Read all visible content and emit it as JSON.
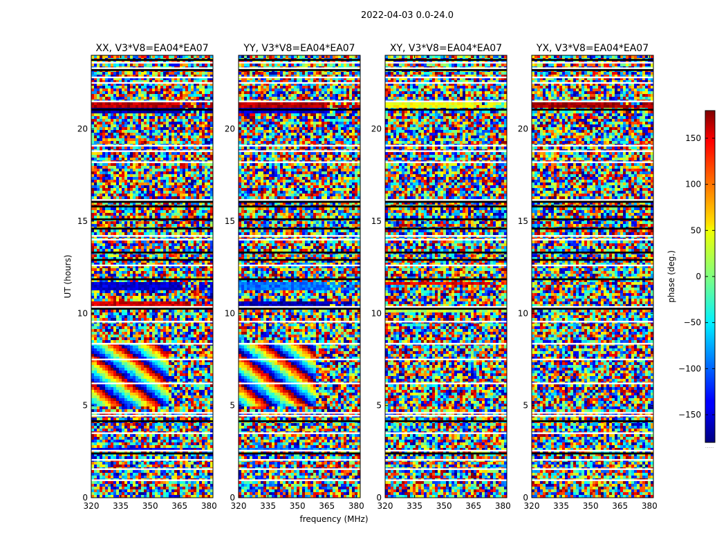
{
  "figure_title": "2022-04-03 0.0-24.0",
  "chart_data": {
    "type": "heatmap",
    "title": "2022-04-03 0.0-24.0",
    "xlabel": "frequency (MHz)",
    "ylabel": "UT (hours)",
    "xlim": [
      320,
      382
    ],
    "ylim": [
      0,
      24
    ],
    "x_ticks": [
      320,
      335,
      350,
      365,
      380
    ],
    "y_ticks": [
      0,
      5,
      10,
      15,
      20
    ],
    "colormap": "jet",
    "colorbar": {
      "label": "phase (deg.)",
      "range": [
        -180,
        180
      ],
      "ticks": [
        150,
        100,
        50,
        0,
        -50,
        -100,
        -150
      ],
      "tick_labels": [
        "150",
        "100",
        "50",
        "0",
        "−50",
        "−100",
        "−150"
      ],
      "footnote": "....."
    },
    "panels": [
      {
        "title": "XX, V3*V8=EA04*EA07",
        "polarization": "XX"
      },
      {
        "title": "YY, V3*V8=EA04*EA07",
        "polarization": "YY"
      },
      {
        "title": "XY, V3*V8=EA04*EA07",
        "polarization": "XY"
      },
      {
        "title": "YX, V3*V8=EA04*EA07",
        "polarization": "YX"
      }
    ],
    "flagged_hours": [
      0.95,
      1.55,
      2.05,
      2.55,
      3.5,
      4.45,
      4.6,
      6.2,
      7.5,
      8.35,
      9.55,
      10.35,
      12.6,
      14.0,
      14.2,
      16.15,
      18.2,
      18.8,
      19.1,
      21.5,
      22.5,
      22.8,
      23.3,
      23.6
    ],
    "black_bands_hours": [
      2.4,
      4.15,
      10.25,
      11.85,
      12.9,
      13.3,
      14.6,
      15.1,
      15.8,
      16.05,
      21.05,
      23.2,
      23.75
    ],
    "coherent_segments": [
      {
        "panel": "XX",
        "hours": [
          11.3,
          11.65
        ],
        "phase_deg": -150
      },
      {
        "panel": "XX",
        "hours": [
          10.35,
          10.6
        ],
        "phase_deg": 150
      },
      {
        "panel": "XX",
        "hours": [
          2.6,
          2.75
        ],
        "phase_deg": -140
      },
      {
        "panel": "XX",
        "hours": [
          21.15,
          21.45
        ],
        "phase_deg": 160
      },
      {
        "panel": "XX",
        "hours": [
          20.9,
          21.15
        ],
        "phase_deg": -165
      },
      {
        "panel": "YY",
        "hours": [
          11.3,
          11.65
        ],
        "phase_deg": -95
      },
      {
        "panel": "YY",
        "hours": [
          10.35,
          10.6
        ],
        "phase_deg": -160
      },
      {
        "panel": "YY",
        "hours": [
          2.6,
          2.75
        ],
        "phase_deg": -95
      },
      {
        "panel": "YY",
        "hours": [
          21.15,
          21.45
        ],
        "phase_deg": 160
      },
      {
        "panel": "YY",
        "hours": [
          20.9,
          21.15
        ],
        "phase_deg": -150
      },
      {
        "panel": "XY",
        "hours": [
          11.5,
          11.7
        ],
        "phase_deg": 140
      },
      {
        "panel": "XY",
        "hours": [
          10.1,
          10.35
        ],
        "phase_deg": 20
      },
      {
        "panel": "XY",
        "hours": [
          21.15,
          21.4
        ],
        "phase_deg": 40
      },
      {
        "panel": "YX",
        "hours": [
          21.15,
          21.45
        ],
        "phase_deg": 170
      }
    ],
    "fringe_regions": [
      {
        "panels": [
          "XX",
          "YY"
        ],
        "hours": [
          4.9,
          8.4
        ],
        "description": "wrapping phase fringes versus frequency"
      }
    ]
  }
}
